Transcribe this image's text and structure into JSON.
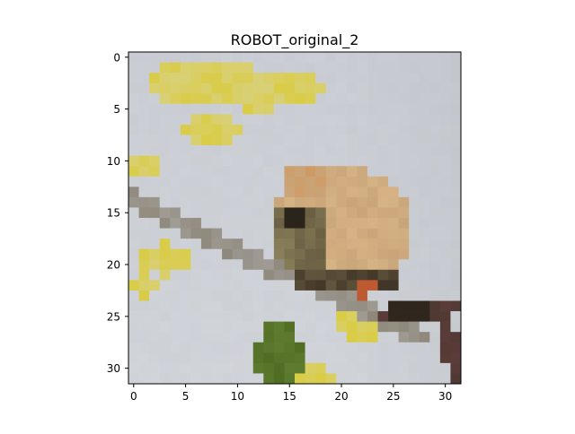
{
  "chart_data": {
    "type": "heatmap",
    "title": "ROBOT_original_2",
    "xlabel": "",
    "ylabel": "",
    "image_size": [
      32,
      32
    ],
    "xlim": [
      -0.5,
      31.5
    ],
    "ylim": [
      31.5,
      -0.5
    ],
    "x_ticks": [
      0,
      5,
      10,
      15,
      20,
      25,
      30
    ],
    "y_ticks": [
      0,
      5,
      10,
      15,
      20,
      25,
      30
    ],
    "grid": false,
    "legend": "none",
    "colors": {
      "background": "#c8ccd2",
      "bird_tan": "#c9a57a",
      "bird_dark": "#3f3426",
      "bird_olive": "#7d7250",
      "branch": "#8e877a",
      "leaf_green": "#4e6b22",
      "flower_yellow": "#d9cc46",
      "flower_pale": "#d8d39a",
      "brown_twig": "#5a3c3a",
      "axes_edge": "#000000"
    }
  }
}
